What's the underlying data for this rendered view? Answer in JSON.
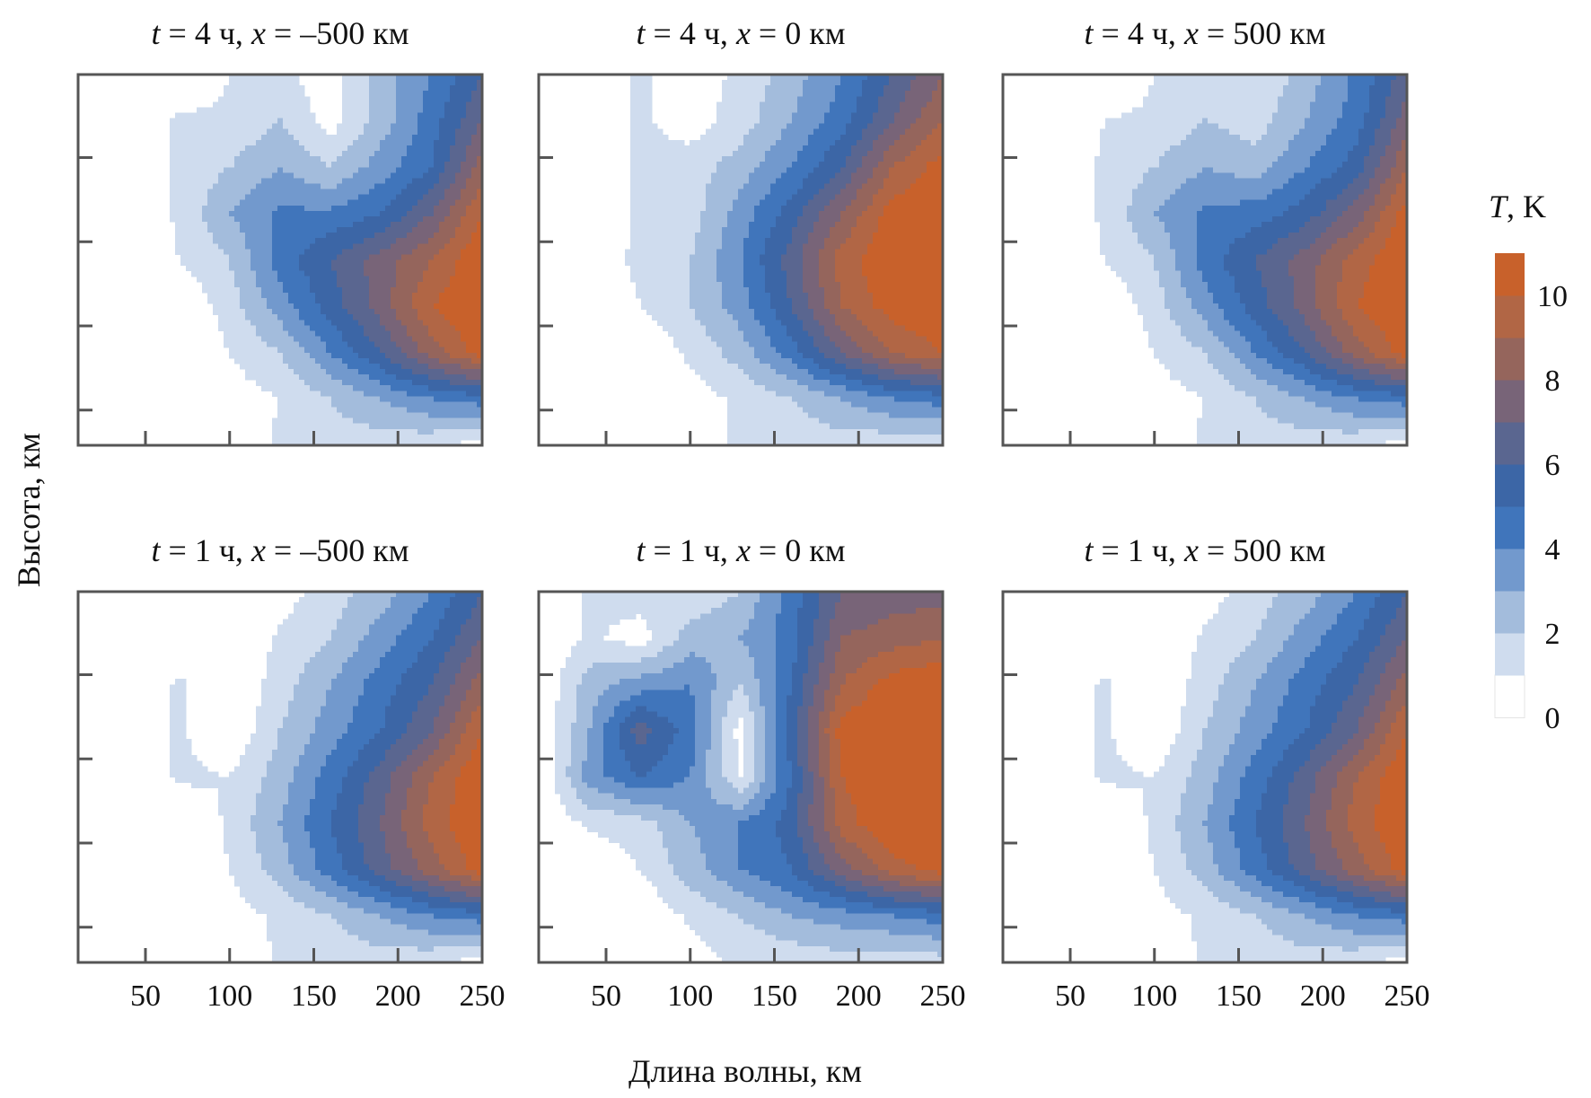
{
  "chart_data": {
    "type": "heatmap",
    "style": "filled-contour",
    "xlabel": "Длина волны, км",
    "ylabel": "Высота, км",
    "xlim": [
      10,
      250
    ],
    "xticks": [
      50,
      100,
      150,
      200,
      250
    ],
    "yticks_count": 4,
    "grid": false,
    "colorbar": {
      "title_italic": "T",
      "title_rest": ", K",
      "levels": [
        0,
        1,
        2,
        3,
        4,
        5,
        6,
        7,
        8,
        9,
        10,
        11
      ],
      "ticks": [
        "0",
        "2",
        "4",
        "6",
        "8",
        "10"
      ],
      "colors": [
        "#ffffff",
        "#cfdcee",
        "#a3bcdc",
        "#7299cd",
        "#4075bb",
        "#3c66a6",
        "#5a6690",
        "#786478",
        "#95655c",
        "#b16645",
        "#c8612b"
      ]
    },
    "grid_x_km": [
      10,
      40,
      70,
      100,
      130,
      160,
      190,
      220,
      250
    ],
    "grid_rows_note": "rows top to bottom",
    "panels": [
      {
        "t_label": "t",
        "t_rest": " = 4 ч, ",
        "x_label": "x",
        "x_rest": " = –500 км",
        "T": [
          [
            0,
            0,
            0,
            1,
            1.2,
            0.5,
            2.5,
            4,
            6
          ],
          [
            0,
            0,
            1.2,
            1.2,
            2,
            0.5,
            2.5,
            4.5,
            7
          ],
          [
            0,
            0,
            1.2,
            2,
            3,
            2,
            3.5,
            5,
            8.5
          ],
          [
            0,
            0,
            1.2,
            3,
            4.2,
            4.2,
            5,
            7,
            10
          ],
          [
            0,
            0,
            1,
            2,
            4.5,
            6,
            7.5,
            9,
            11
          ],
          [
            0,
            0.5,
            0,
            1.5,
            3.5,
            5.5,
            7.5,
            10,
            11
          ],
          [
            0,
            0,
            0,
            1,
            2,
            4,
            6,
            8.5,
            10.5
          ],
          [
            0,
            0,
            0,
            0.5,
            1,
            2,
            3,
            4,
            4.5
          ],
          [
            0,
            0,
            0,
            0,
            1.2,
            1.5,
            1.5,
            1.2,
            0.5
          ]
        ]
      },
      {
        "t_label": "t",
        "t_rest": " = 4 ч, ",
        "x_label": "x",
        "x_rest": " = 0 км",
        "T": [
          [
            0,
            0,
            1.2,
            0.5,
            1.2,
            2.5,
            4,
            6,
            8
          ],
          [
            0,
            0,
            1.2,
            0.5,
            1.5,
            3,
            4.5,
            7,
            9
          ],
          [
            0,
            0,
            1.2,
            1.5,
            2.5,
            4,
            6,
            9,
            10.5
          ],
          [
            0,
            0,
            1.2,
            1.5,
            3.5,
            5.5,
            8,
            10.5,
            11
          ],
          [
            0,
            0.5,
            1.2,
            2,
            4,
            6.5,
            9.5,
            11,
            11
          ],
          [
            0,
            0,
            1,
            2,
            3.5,
            6,
            9,
            10.5,
            11
          ],
          [
            0,
            0,
            0,
            1.2,
            2.5,
            4.5,
            7,
            9,
            10
          ],
          [
            0,
            0,
            0,
            0.5,
            1.2,
            2,
            3,
            4,
            4.5
          ],
          [
            0,
            0,
            0,
            0.5,
            1.2,
            1.2,
            1.5,
            1.2,
            1
          ]
        ]
      },
      {
        "t_label": "t",
        "t_rest": " = 4 ч, ",
        "x_label": "x",
        "x_rest": " = 500 км",
        "T": [
          [
            0,
            0,
            0,
            1,
            1.2,
            1,
            2.5,
            4.2,
            6.5
          ],
          [
            0,
            0,
            1,
            1.2,
            2,
            1.5,
            3,
            4.5,
            7.5
          ],
          [
            0,
            0,
            1.2,
            2,
            3,
            2.5,
            4,
            5.5,
            9
          ],
          [
            0,
            0,
            1.2,
            3,
            4.2,
            4.5,
            5.5,
            7.5,
            10.5
          ],
          [
            0,
            0,
            1,
            2,
            4.5,
            6,
            7.5,
            9.5,
            11
          ],
          [
            0,
            0.5,
            0,
            1.5,
            3.5,
            5.5,
            7.5,
            10,
            11
          ],
          [
            0,
            0,
            0,
            1,
            2,
            4,
            6,
            8.5,
            10.5
          ],
          [
            0,
            0,
            0,
            0.5,
            1,
            2,
            3,
            4,
            4.5
          ],
          [
            0,
            0,
            0,
            0,
            1.2,
            1.5,
            1.5,
            1.2,
            0.5
          ]
        ]
      },
      {
        "t_label": "t",
        "t_rest": " = 1 ч, ",
        "x_label": "x",
        "x_rest": " = –500 км",
        "T": [
          [
            0,
            0,
            0,
            0,
            0.5,
            1.5,
            2.5,
            4,
            6
          ],
          [
            0,
            0,
            0,
            0,
            1.2,
            2,
            3.5,
            5,
            7
          ],
          [
            0,
            0,
            1.2,
            0,
            1.5,
            3,
            4.5,
            6,
            8.5
          ],
          [
            0,
            0,
            1.2,
            0,
            2,
            3.5,
            5,
            7,
            10
          ],
          [
            0,
            0,
            1.2,
            1,
            2.5,
            4.5,
            6.5,
            9,
            11
          ],
          [
            0,
            0.5,
            0,
            1.2,
            3,
            5,
            7,
            9.5,
            11
          ],
          [
            0,
            0,
            0,
            1,
            2.5,
            4.5,
            6.5,
            8.5,
            10.5
          ],
          [
            0,
            0,
            0,
            0.5,
            1.2,
            2,
            3,
            4,
            4.5
          ],
          [
            0,
            0,
            0,
            0,
            1.2,
            1.2,
            1.5,
            1.2,
            0.5
          ]
        ]
      },
      {
        "t_label": "t",
        "t_rest": " = 1 ч, ",
        "x_label": "x",
        "x_rest": " = 0 км",
        "T": [
          [
            0,
            1.2,
            1.5,
            1.2,
            2,
            4.5,
            7,
            7.5,
            7.5
          ],
          [
            0,
            1.2,
            0.5,
            2.5,
            3,
            4.5,
            8,
            8.5,
            9
          ],
          [
            0,
            2.5,
            3.5,
            4,
            2,
            5,
            9,
            10.5,
            11
          ],
          [
            0,
            3,
            6.5,
            4.5,
            0.5,
            5.5,
            10.5,
            11,
            11
          ],
          [
            0,
            3.5,
            5,
            4,
            1,
            5,
            10,
            11,
            11
          ],
          [
            0,
            1.2,
            1.5,
            3,
            4,
            5.5,
            9.5,
            11,
            11
          ],
          [
            0,
            0,
            1,
            2.5,
            4,
            5,
            7.5,
            9.5,
            10.5
          ],
          [
            0,
            0,
            0,
            1.2,
            2,
            3,
            3.5,
            4,
            4.5
          ],
          [
            0,
            0,
            0,
            0.5,
            1.2,
            1.2,
            1.5,
            1.2,
            1.5
          ]
        ]
      },
      {
        "t_label": "t",
        "t_rest": " = 1 ч, ",
        "x_label": "x",
        "x_rest": " = 500 км",
        "T": [
          [
            0,
            0,
            0,
            0,
            0.5,
            1.5,
            2.5,
            4,
            6
          ],
          [
            0,
            0,
            0,
            0,
            1.2,
            2,
            3.5,
            5,
            7
          ],
          [
            0,
            0,
            1.2,
            0,
            1.5,
            3,
            4.5,
            6,
            8.5
          ],
          [
            0,
            0,
            1.2,
            0,
            2,
            3.5,
            5,
            7,
            10
          ],
          [
            0,
            0,
            1.2,
            1,
            2.5,
            4.5,
            6.5,
            9,
            11
          ],
          [
            0,
            0.5,
            0,
            1.2,
            3,
            5,
            7,
            9.5,
            11
          ],
          [
            0,
            0,
            0,
            1,
            2.5,
            4.5,
            6.5,
            8.5,
            10.5
          ],
          [
            0,
            0,
            0,
            0.5,
            1.2,
            2,
            3,
            4,
            4.5
          ],
          [
            0,
            0,
            0,
            0,
            1.2,
            1.2,
            1.5,
            1.2,
            0.5
          ]
        ]
      }
    ]
  }
}
